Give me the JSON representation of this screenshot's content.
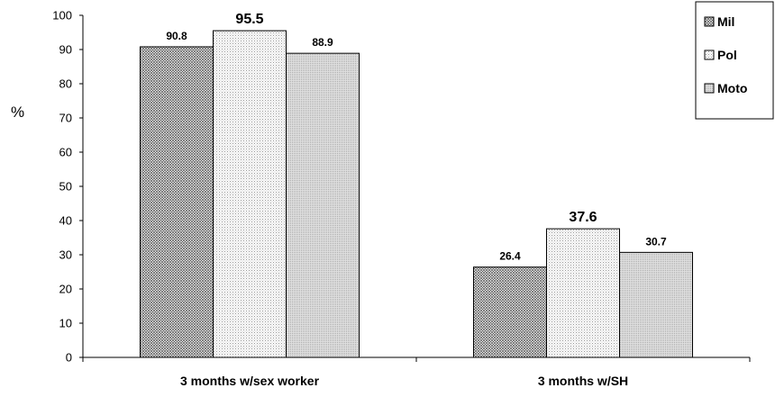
{
  "chart_data": {
    "type": "bar",
    "categories": [
      "3 months w/sex worker",
      "3 months w/SH"
    ],
    "series": [
      {
        "name": "Mil",
        "values": [
          90.8,
          26.4
        ],
        "labels": [
          "90.8",
          "26.4"
        ],
        "pattern": "crosshatch",
        "color": "#b0b0b0"
      },
      {
        "name": "Pol",
        "values": [
          95.5,
          37.6
        ],
        "labels": [
          "95.5",
          "37.6"
        ],
        "pattern": "dots",
        "color": "#e6e6e6"
      },
      {
        "name": "Moto",
        "values": [
          88.9,
          30.7
        ],
        "labels": [
          "88.9",
          "30.7"
        ],
        "pattern": "fine",
        "color": "#cfcfcf"
      }
    ],
    "ylabel": "%",
    "ylim": [
      0,
      100
    ],
    "yticks": [
      "0",
      "10",
      "20",
      "30",
      "40",
      "50",
      "60",
      "70",
      "80",
      "90",
      "100"
    ],
    "grid": false,
    "legend_position": "top-right",
    "emphasized_series": "Pol"
  }
}
